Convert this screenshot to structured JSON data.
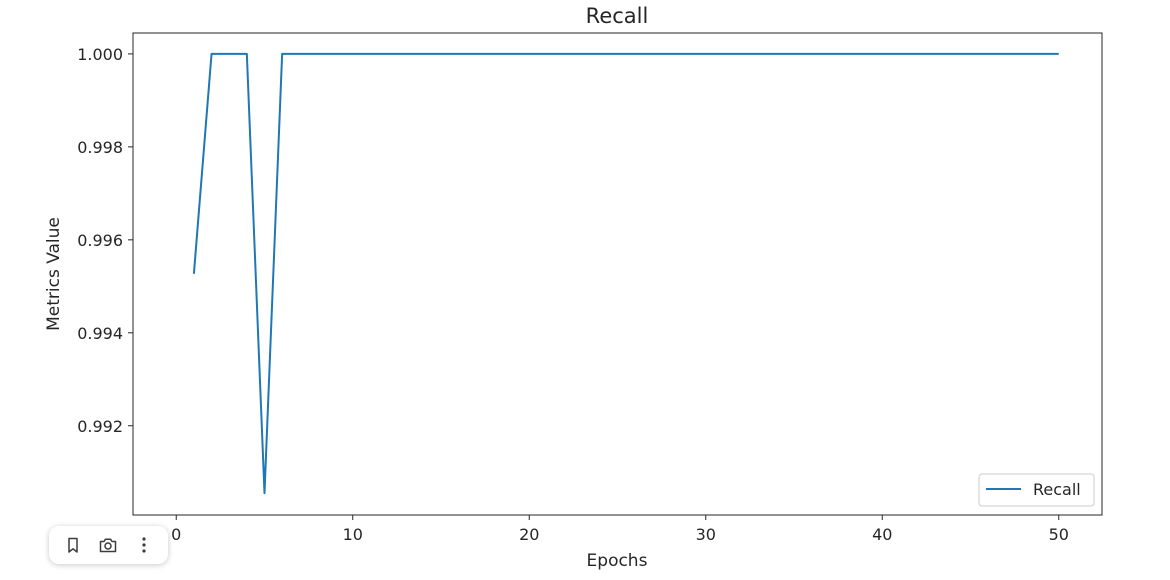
{
  "chart_data": {
    "type": "line",
    "title": "Recall",
    "xlabel": "Epochs",
    "ylabel": "Metrics Value",
    "xlim": [
      -2.45,
      52.45
    ],
    "ylim": [
      0.99008,
      1.00045
    ],
    "xticks": [
      0,
      10,
      20,
      30,
      40,
      50
    ],
    "yticks": [
      0.992,
      0.994,
      0.996,
      0.998,
      1.0
    ],
    "ytick_labels": [
      "0.992",
      "0.994",
      "0.996",
      "0.998",
      "1.000"
    ],
    "xtick_labels": [
      "0",
      "10",
      "20",
      "30",
      "40",
      "50"
    ],
    "grid": false,
    "legend_position": "lower-right",
    "series": [
      {
        "name": "Recall",
        "color": "#1f77b4",
        "x": [
          1,
          2,
          3,
          4,
          5,
          6,
          7,
          8,
          9,
          10,
          11,
          12,
          13,
          14,
          15,
          16,
          17,
          18,
          19,
          20,
          21,
          22,
          23,
          24,
          25,
          26,
          27,
          28,
          29,
          30,
          31,
          32,
          33,
          34,
          35,
          36,
          37,
          38,
          39,
          40,
          41,
          42,
          43,
          44,
          45,
          46,
          47,
          48,
          49,
          50
        ],
        "values": [
          0.99527,
          1.0,
          1.0,
          1.0,
          0.99055,
          1.0,
          1.0,
          1.0,
          1.0,
          1.0,
          1.0,
          1.0,
          1.0,
          1.0,
          1.0,
          1.0,
          1.0,
          1.0,
          1.0,
          1.0,
          1.0,
          1.0,
          1.0,
          1.0,
          1.0,
          1.0,
          1.0,
          1.0,
          1.0,
          1.0,
          1.0,
          1.0,
          1.0,
          1.0,
          1.0,
          1.0,
          1.0,
          1.0,
          1.0,
          1.0,
          1.0,
          1.0,
          1.0,
          1.0,
          1.0,
          1.0,
          1.0,
          1.0,
          1.0,
          1.0
        ]
      }
    ]
  },
  "toolbar": {
    "icons": [
      "bookmark-icon",
      "camera-icon",
      "more-vertical-icon"
    ]
  }
}
